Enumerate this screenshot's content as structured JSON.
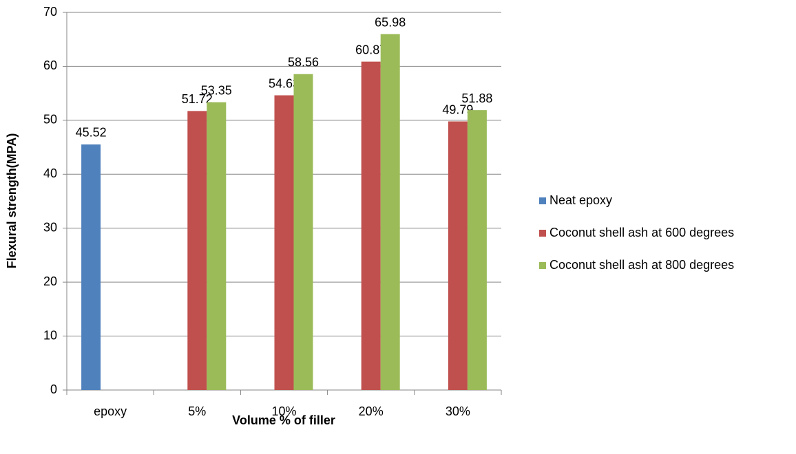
{
  "chart_data": {
    "type": "bar",
    "x_label": "Volume % of filler",
    "y_label": "Flexural strength(MPA)",
    "categories": [
      "epoxy",
      "5%",
      "10%",
      "20%",
      "30%"
    ],
    "series": [
      {
        "name": "Neat epoxy",
        "color": "#4f81bd",
        "values": [
          45.52,
          null,
          null,
          null,
          null
        ]
      },
      {
        "name": "Coconut shell ash at 600 degrees",
        "color": "#c0504d",
        "values": [
          null,
          51.72,
          54.63,
          60.87,
          49.79
        ]
      },
      {
        "name": "Coconut shell ash at 800 degrees",
        "color": "#9bbb59",
        "values": [
          null,
          53.35,
          58.56,
          65.98,
          51.88
        ]
      }
    ],
    "ylim": [
      0,
      70
    ],
    "yticks": [
      0,
      10,
      20,
      30,
      40,
      50,
      60,
      70
    ],
    "grid": true,
    "legend": "right"
  }
}
